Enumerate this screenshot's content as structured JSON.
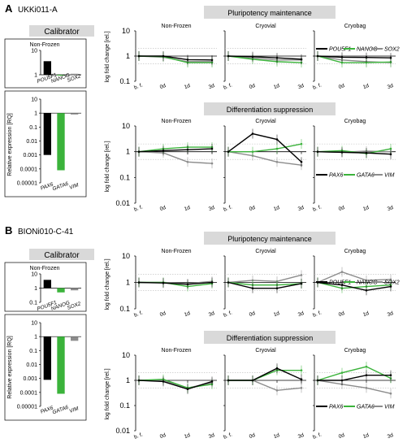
{
  "figure": {
    "section_a": {
      "letter": "A",
      "cell_line": "UKKi011-A"
    },
    "section_b": {
      "letter": "B",
      "cell_line": "BIONi010-C-41"
    },
    "calibrator_label": "Calibrator",
    "calibrator_subtitle": "Non-Frozen",
    "rq_ylabel": "Relative expression [RQ]",
    "logfold_ylabel": "log fold change [rel.]",
    "section_titles": {
      "pluri": "Pluripotency maintenance",
      "diff": "Differentiation suppression"
    },
    "panel_titles": [
      "Non-Frozen",
      "Cryovial",
      "Cryobag"
    ],
    "timepoints": [
      "b. f.",
      "0d",
      "1d",
      "3d"
    ],
    "colors": {
      "gene1": "#000000",
      "gene2": "#3bb33b",
      "gene3": "#8c8c8c",
      "header_bg": "#d9d9d9"
    }
  },
  "chart_data": [
    {
      "id": "A-calibrator-pluri",
      "type": "bar",
      "log_scale": true,
      "ylim": [
        1,
        10
      ],
      "yticks": [
        "1",
        "10"
      ],
      "categories": [
        "POU5F1",
        "NANOG",
        "SOX2"
      ],
      "values": [
        3.6,
        1.0,
        1.1
      ]
    },
    {
      "id": "A-calibrator-diff",
      "type": "bar",
      "log_scale": true,
      "ylim": [
        1e-05,
        10
      ],
      "yticks": [
        "0.00001",
        "0.0001",
        "0.001",
        "0.01",
        "0.1",
        "1",
        "10"
      ],
      "categories": [
        "PAX6",
        "GATA6",
        "VIM"
      ],
      "values": [
        0.001,
        8e-05,
        0.8
      ]
    },
    {
      "id": "A-pluri",
      "type": "line",
      "log_scale": true,
      "ylim": [
        0.1,
        10
      ],
      "yticks": [
        "0.1",
        "1",
        "10"
      ],
      "x": [
        "b. f.",
        "0d",
        "1d",
        "3d"
      ],
      "panels": [
        {
          "title": "Non-Frozen",
          "series": [
            {
              "values": [
                1,
                1,
                0.72,
                0.7
              ]
            },
            {
              "values": [
                1,
                0.95,
                0.55,
                0.55
              ]
            },
            {
              "values": [
                1,
                0.9,
                0.6,
                0.6
              ]
            }
          ]
        },
        {
          "title": "Cryovial",
          "series": [
            {
              "values": [
                1,
                0.95,
                0.85,
                0.75
              ]
            },
            {
              "values": [
                1,
                0.75,
                0.6,
                0.55
              ]
            },
            {
              "values": [
                1,
                0.85,
                0.7,
                0.7
              ]
            }
          ]
        },
        {
          "title": "Cryobag",
          "series": [
            {
              "values": [
                1,
                0.9,
                0.88,
                0.85
              ]
            },
            {
              "values": [
                1,
                0.55,
                0.55,
                0.58
              ]
            },
            {
              "values": [
                1,
                0.7,
                0.6,
                0.55
              ]
            }
          ]
        }
      ],
      "legend": [
        "POU5F1",
        "NANOG",
        "SOX2"
      ]
    },
    {
      "id": "A-diff",
      "type": "line",
      "log_scale": true,
      "ylim": [
        0.01,
        10
      ],
      "yticks": [
        "0.01",
        "0.1",
        "1",
        "10"
      ],
      "x": [
        "b. f.",
        "0d",
        "1d",
        "3d"
      ],
      "panels": [
        {
          "title": "Non-Frozen",
          "series": [
            {
              "values": [
                1,
                1.1,
                1.2,
                1.3
              ]
            },
            {
              "values": [
                1,
                1.3,
                1.5,
                1.5
              ]
            },
            {
              "values": [
                1,
                0.9,
                0.4,
                0.35
              ]
            }
          ]
        },
        {
          "title": "Cryovial",
          "series": [
            {
              "values": [
                1,
                5,
                3,
                0.4
              ]
            },
            {
              "values": [
                1,
                1.0,
                1.3,
                2.0
              ]
            },
            {
              "values": [
                1,
                0.7,
                0.4,
                0.3
              ]
            }
          ]
        },
        {
          "title": "Cryobag",
          "series": [
            {
              "values": [
                1,
                0.95,
                0.9,
                0.8
              ]
            },
            {
              "values": [
                1,
                1.1,
                0.85,
                1.3
              ]
            },
            {
              "values": [
                1,
                0.95,
                1.05,
                1.0
              ]
            }
          ]
        }
      ],
      "legend": [
        "PAX6",
        "GATA6",
        "VIM"
      ]
    },
    {
      "id": "B-calibrator-pluri",
      "type": "bar",
      "log_scale": true,
      "ylim": [
        0.1,
        10
      ],
      "yticks": [
        "0.1",
        "1",
        "10"
      ],
      "categories": [
        "POU5F1",
        "NANOG",
        "SOX2"
      ],
      "values": [
        3.8,
        0.5,
        0.7
      ]
    },
    {
      "id": "B-calibrator-diff",
      "type": "bar",
      "log_scale": true,
      "ylim": [
        1e-05,
        10
      ],
      "yticks": [
        "0.00001",
        "0.0001",
        "0.001",
        "0.01",
        "0.1",
        "1",
        "10"
      ],
      "categories": [
        "PAX6",
        "GATA6",
        "VIM"
      ],
      "values": [
        0.0008,
        8e-05,
        0.5
      ]
    },
    {
      "id": "B-pluri",
      "type": "line",
      "log_scale": true,
      "ylim": [
        0.1,
        10
      ],
      "yticks": [
        "0.1",
        "1",
        "10"
      ],
      "x": [
        "b. f.",
        "0d",
        "1d",
        "3d"
      ],
      "panels": [
        {
          "title": "Non-Frozen",
          "series": [
            {
              "values": [
                1,
                0.95,
                0.85,
                1.0
              ]
            },
            {
              "values": [
                1,
                1.0,
                0.7,
                0.9
              ]
            },
            {
              "values": [
                1,
                1.0,
                0.9,
                1.1
              ]
            }
          ]
        },
        {
          "title": "Cryovial",
          "series": [
            {
              "values": [
                1,
                0.6,
                0.6,
                0.9
              ]
            },
            {
              "values": [
                1,
                0.8,
                0.8,
                0.9
              ]
            },
            {
              "values": [
                1,
                1.2,
                1.1,
                1.9
              ]
            }
          ]
        },
        {
          "title": "Cryobag",
          "series": [
            {
              "values": [
                1,
                0.8,
                0.5,
                0.7
              ]
            },
            {
              "values": [
                1,
                0.6,
                0.7,
                0.8
              ]
            },
            {
              "values": [
                1,
                2.5,
                1.2,
                1.3
              ]
            }
          ]
        }
      ],
      "legend": [
        "POU5F1",
        "NANOG",
        "SOX2"
      ]
    },
    {
      "id": "B-diff",
      "type": "line",
      "log_scale": true,
      "ylim": [
        0.01,
        10
      ],
      "yticks": [
        "0.01",
        "0.1",
        "1",
        "10"
      ],
      "x": [
        "b. f.",
        "0d",
        "1d",
        "3d"
      ],
      "panels": [
        {
          "title": "Non-Frozen",
          "series": [
            {
              "values": [
                1,
                0.9,
                0.45,
                0.9
              ]
            },
            {
              "values": [
                1,
                1.1,
                0.5,
                0.7
              ]
            },
            {
              "values": [
                1,
                1.0,
                0.5,
                0.8
              ]
            }
          ]
        },
        {
          "title": "Cryovial",
          "series": [
            {
              "values": [
                1,
                1.0,
                3.0,
                1.1
              ]
            },
            {
              "values": [
                1,
                1.0,
                2.5,
                2.5
              ]
            },
            {
              "values": [
                1,
                1.0,
                0.4,
                0.5
              ]
            }
          ]
        },
        {
          "title": "Cryobag",
          "series": [
            {
              "values": [
                1,
                1.0,
                1.6,
                1.6
              ]
            },
            {
              "values": [
                1,
                2.0,
                3.5,
                1.2
              ]
            },
            {
              "values": [
                1,
                0.7,
                0.5,
                0.3
              ]
            }
          ]
        }
      ],
      "legend": [
        "PAX6",
        "GATA6",
        "VIM"
      ]
    }
  ]
}
